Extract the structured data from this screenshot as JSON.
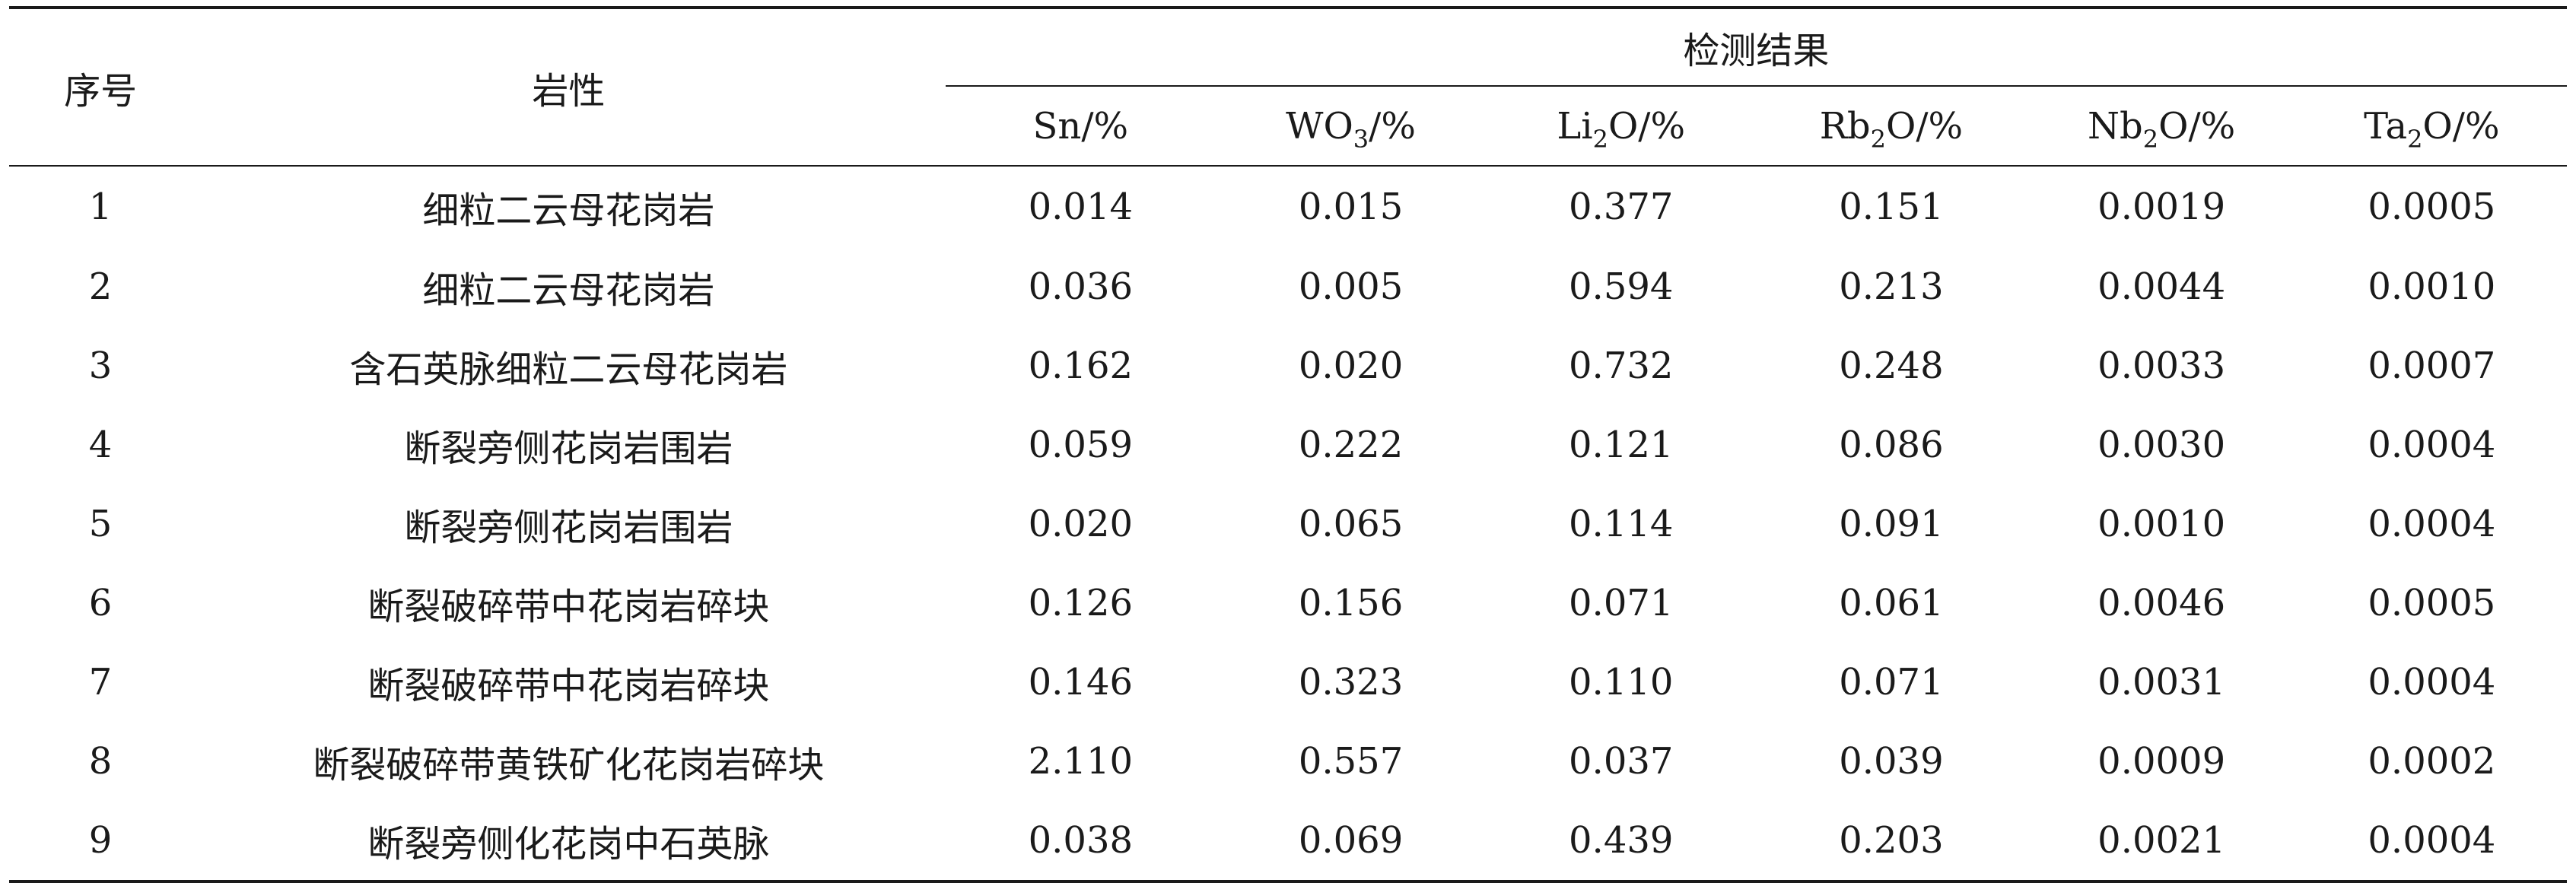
{
  "table": {
    "header": {
      "index": "序号",
      "rock": "岩性",
      "group": "检测结果",
      "columns": [
        {
          "base": "Sn",
          "sub": "",
          "rest": "/%"
        },
        {
          "base": "WO",
          "sub": "3",
          "rest": "/%"
        },
        {
          "base": "Li",
          "sub": "2",
          "rest": "O/%"
        },
        {
          "base": "Rb",
          "sub": "2",
          "rest": "O/%"
        },
        {
          "base": "Nb",
          "sub": "2",
          "rest": "O/%"
        },
        {
          "base": "Ta",
          "sub": "2",
          "rest": "O/%"
        }
      ]
    },
    "rows": [
      {
        "idx": "1",
        "rock": "细粒二云母花岗岩",
        "vals": [
          "0.014",
          "0.015",
          "0.377",
          "0.151",
          "0.0019",
          "0.0005"
        ]
      },
      {
        "idx": "2",
        "rock": "细粒二云母花岗岩",
        "vals": [
          "0.036",
          "0.005",
          "0.594",
          "0.213",
          "0.0044",
          "0.0010"
        ]
      },
      {
        "idx": "3",
        "rock": "含石英脉细粒二云母花岗岩",
        "vals": [
          "0.162",
          "0.020",
          "0.732",
          "0.248",
          "0.0033",
          "0.0007"
        ]
      },
      {
        "idx": "4",
        "rock": "断裂旁侧花岗岩围岩",
        "vals": [
          "0.059",
          "0.222",
          "0.121",
          "0.086",
          "0.0030",
          "0.0004"
        ]
      },
      {
        "idx": "5",
        "rock": "断裂旁侧花岗岩围岩",
        "vals": [
          "0.020",
          "0.065",
          "0.114",
          "0.091",
          "0.0010",
          "0.0004"
        ]
      },
      {
        "idx": "6",
        "rock": "断裂破碎带中花岗岩碎块",
        "vals": [
          "0.126",
          "0.156",
          "0.071",
          "0.061",
          "0.0046",
          "0.0005"
        ]
      },
      {
        "idx": "7",
        "rock": "断裂破碎带中花岗岩碎块",
        "vals": [
          "0.146",
          "0.323",
          "0.110",
          "0.071",
          "0.0031",
          "0.0004"
        ]
      },
      {
        "idx": "8",
        "rock": "断裂破碎带黄铁矿化花岗岩碎块",
        "vals": [
          "2.110",
          "0.557",
          "0.037",
          "0.039",
          "0.0009",
          "0.0002"
        ]
      },
      {
        "idx": "9",
        "rock": "断裂旁侧化花岗中石英脉",
        "vals": [
          "0.038",
          "0.069",
          "0.439",
          "0.203",
          "0.0021",
          "0.0004"
        ]
      }
    ]
  }
}
